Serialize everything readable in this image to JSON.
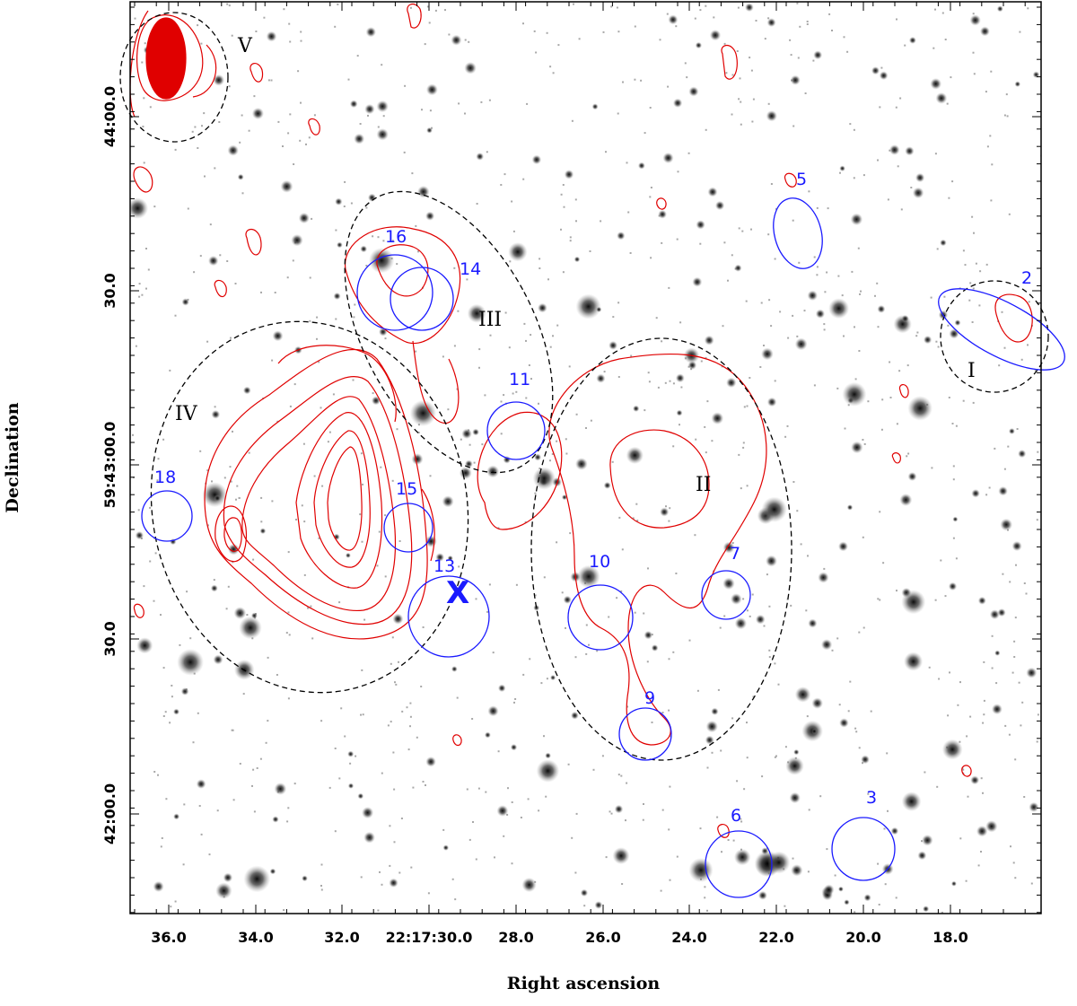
{
  "axes": {
    "xlabel": "Right ascension",
    "ylabel": "Declination",
    "x_ticks": [
      "36.0",
      "34.0",
      "32.0",
      "22:17:30.0",
      "28.0",
      "26.0",
      "24.0",
      "22.0",
      "20.0",
      "18.0"
    ],
    "y_ticks": [
      "44:00.0",
      "30.0",
      "59:43:00.0",
      "30.0",
      "42:00.0"
    ]
  },
  "colors": {
    "source_circle": "#1a1aff",
    "contour": "#e00000",
    "region_ellipse": "#000000",
    "background": "#ffffff"
  },
  "sources": [
    {
      "id": "2"
    },
    {
      "id": "3"
    },
    {
      "id": "5"
    },
    {
      "id": "6"
    },
    {
      "id": "7"
    },
    {
      "id": "9"
    },
    {
      "id": "10"
    },
    {
      "id": "11"
    },
    {
      "id": "13"
    },
    {
      "id": "14"
    },
    {
      "id": "15"
    },
    {
      "id": "16"
    },
    {
      "id": "18"
    }
  ],
  "regions": [
    {
      "label": "I"
    },
    {
      "label": "II"
    },
    {
      "label": "III"
    },
    {
      "label": "IV"
    },
    {
      "label": "V"
    }
  ],
  "marker": {
    "label": "X"
  }
}
